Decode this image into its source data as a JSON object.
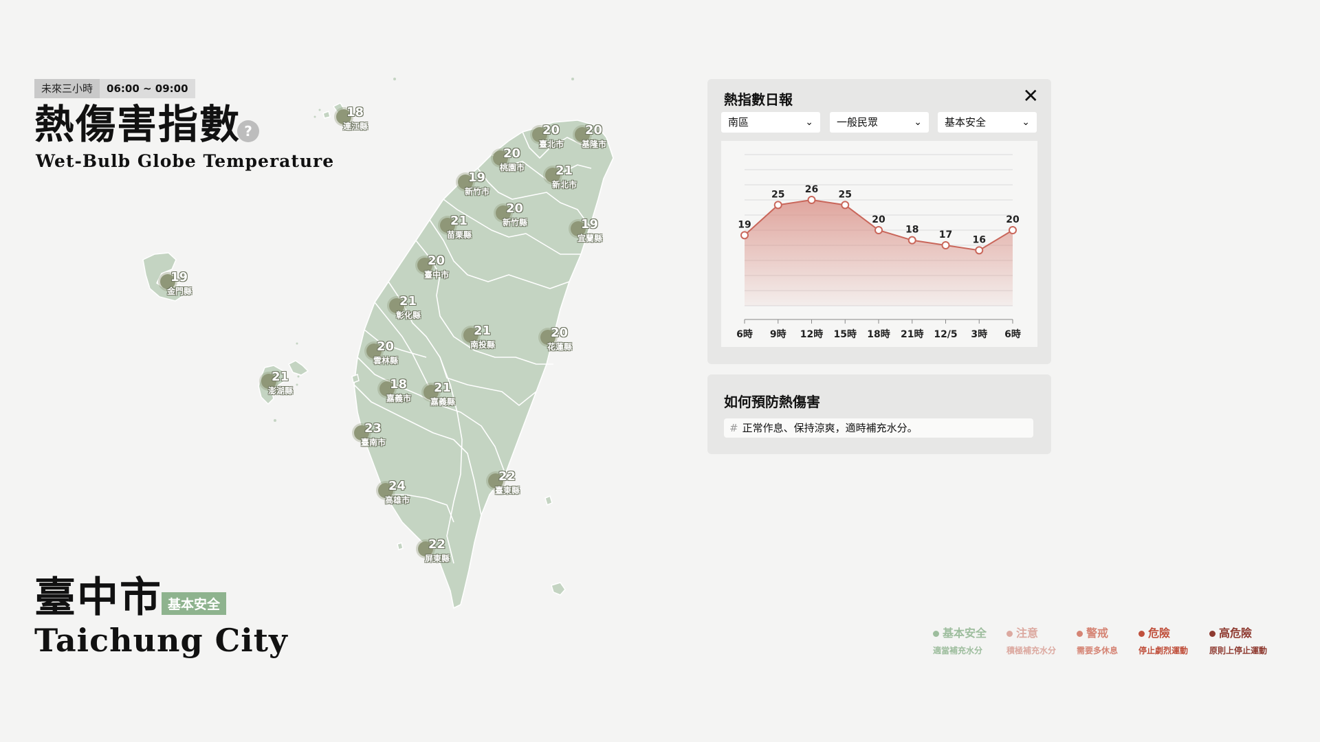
{
  "header": {
    "time_label": "未來三小時",
    "time_range": "06:00 ~ 09:00",
    "title_zh": "熱傷害指數",
    "help_icon": "?",
    "title_en": "Wet-Bulb Globe Temperature"
  },
  "city": {
    "name_zh": "臺中市",
    "level": "基本安全",
    "name_en": "Taichung City"
  },
  "map": {
    "markers": [
      {
        "name": "連江縣",
        "value": "18"
      },
      {
        "name": "臺北市",
        "value": "20"
      },
      {
        "name": "基隆市",
        "value": "20"
      },
      {
        "name": "桃園市",
        "value": "20"
      },
      {
        "name": "新北市",
        "value": "21"
      },
      {
        "name": "新竹市",
        "value": "19"
      },
      {
        "name": "新竹縣",
        "value": "20"
      },
      {
        "name": "苗栗縣",
        "value": "21"
      },
      {
        "name": "宜蘭縣",
        "value": "19"
      },
      {
        "name": "金門縣",
        "value": "19"
      },
      {
        "name": "臺中市",
        "value": "20"
      },
      {
        "name": "彰化縣",
        "value": "21"
      },
      {
        "name": "南投縣",
        "value": "21"
      },
      {
        "name": "花蓮縣",
        "value": "20"
      },
      {
        "name": "雲林縣",
        "value": "20"
      },
      {
        "name": "澎湖縣",
        "value": "21"
      },
      {
        "name": "嘉義市",
        "value": "18"
      },
      {
        "name": "嘉義縣",
        "value": "21"
      },
      {
        "name": "臺南市",
        "value": "23"
      },
      {
        "name": "臺東縣",
        "value": "22"
      },
      {
        "name": "高雄市",
        "value": "24"
      },
      {
        "name": "屏東縣",
        "value": "22"
      }
    ]
  },
  "panel": {
    "title": "熱指數日報",
    "close_icon": "✕",
    "selects": [
      {
        "value": "南區"
      },
      {
        "value": "一般民眾"
      },
      {
        "value": "基本安全"
      }
    ]
  },
  "chart_data": {
    "type": "area",
    "categories": [
      "6時",
      "9時",
      "12時",
      "15時",
      "18時",
      "21時",
      "12/5",
      "3時",
      "6時"
    ],
    "values": [
      19,
      25,
      26,
      25,
      20,
      18,
      17,
      16,
      20
    ],
    "ylim": [
      5,
      35
    ],
    "grid": true,
    "line_color": "#c9665a",
    "fill_color": "#d88a80"
  },
  "prevention": {
    "title": "如何預防熱傷害",
    "tip": "正常作息、保持涼爽，適時補充水分。"
  },
  "legend": [
    {
      "label": "基本安全",
      "desc": "適當補充水分",
      "color": "#9dbd9d"
    },
    {
      "label": "注意",
      "desc": "積極補充水分",
      "color": "#dca9a0"
    },
    {
      "label": "警戒",
      "desc": "需要多休息",
      "color": "#d58474"
    },
    {
      "label": "危險",
      "desc": "停止劇烈運動",
      "color": "#c0503c"
    },
    {
      "label": "高危險",
      "desc": "原則上停止運動",
      "color": "#8e3a30"
    }
  ]
}
